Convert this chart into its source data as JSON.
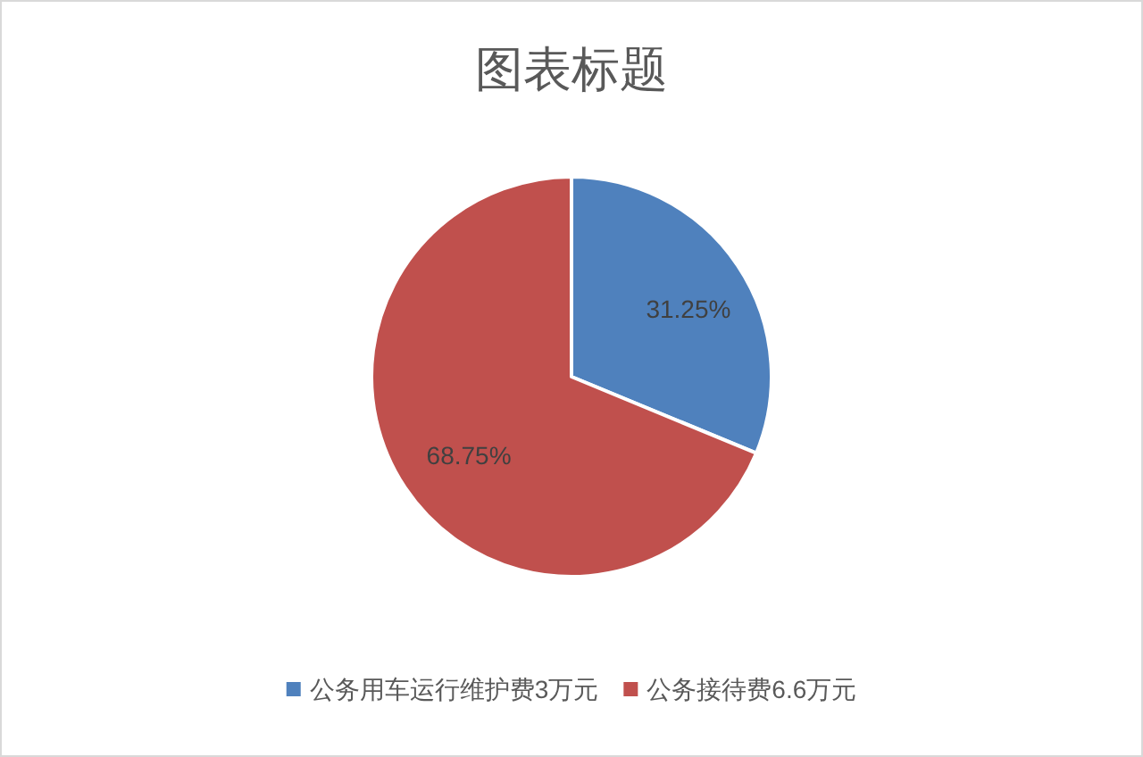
{
  "chart_data": {
    "type": "pie",
    "title": "图表标题",
    "categories": [
      "公务用车运行维护费3万元",
      "公务接待费6.6万元"
    ],
    "values": [
      31.25,
      68.75
    ],
    "colors": [
      "#4f81bd",
      "#c0504d"
    ],
    "value_labels": [
      "31.25%",
      "68.75%"
    ],
    "legend": "bottom"
  }
}
